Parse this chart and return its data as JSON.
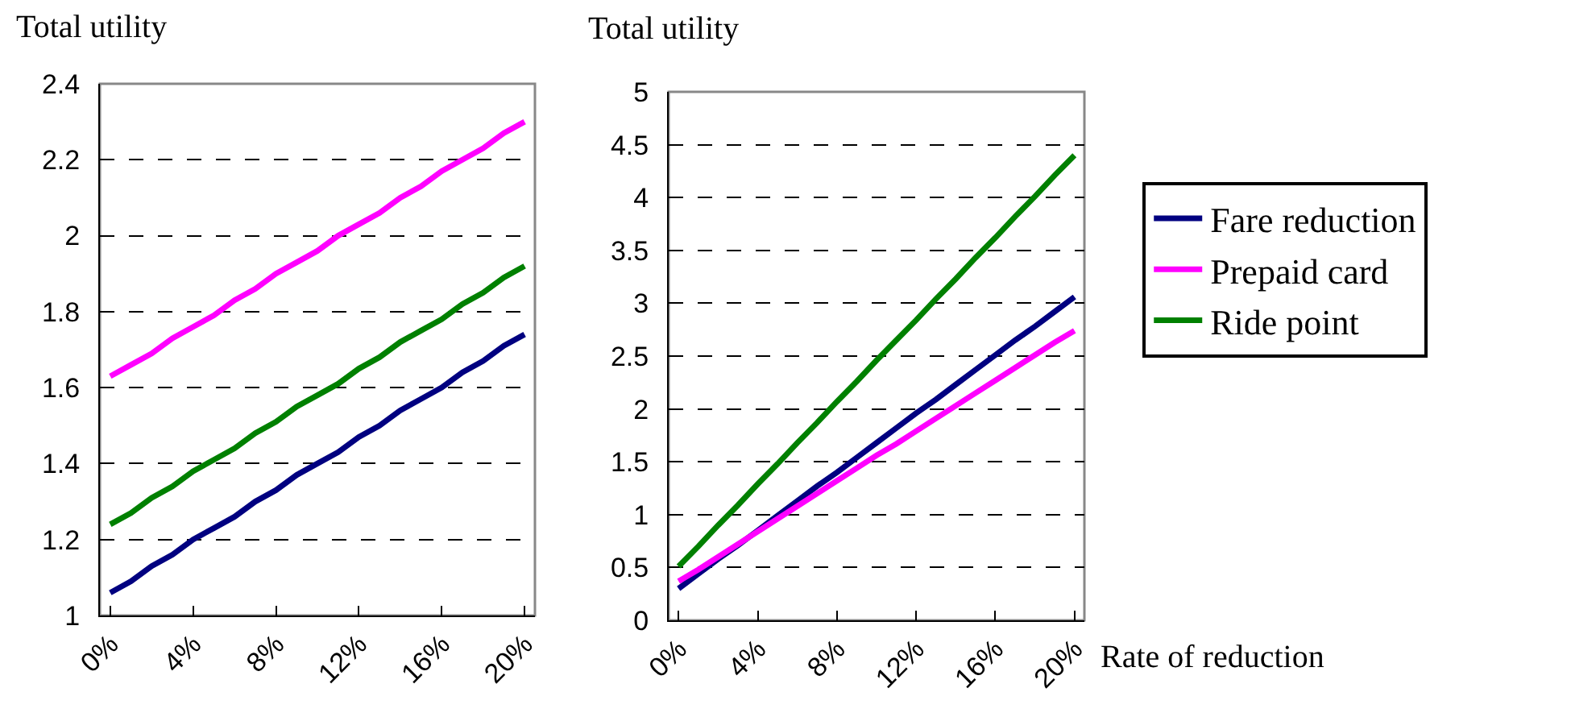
{
  "chart_data": [
    {
      "type": "line",
      "ylabel": "Total utility",
      "x": [
        0,
        1,
        2,
        3,
        4,
        5,
        6,
        7,
        8,
        9,
        10,
        11,
        12,
        13,
        14,
        15,
        16,
        17,
        18,
        19,
        20
      ],
      "xlim": [
        -0.5,
        20.5
      ],
      "xticks": [
        {
          "value": 0,
          "label": "0%"
        },
        {
          "value": 4,
          "label": "4%"
        },
        {
          "value": 8,
          "label": "8%"
        },
        {
          "value": 12,
          "label": "12%"
        },
        {
          "value": 16,
          "label": "16%"
        },
        {
          "value": 20,
          "label": "20%"
        }
      ],
      "ylim": [
        1,
        2.4
      ],
      "yticks": [
        1,
        1.2,
        1.4,
        1.6,
        1.8,
        2,
        2.2,
        2.4
      ],
      "grid": "y",
      "marker": "none",
      "line_style": "solid",
      "legend": false,
      "series": [
        {
          "color": "#000080",
          "values": [
            1.06,
            1.09,
            1.13,
            1.16,
            1.2,
            1.23,
            1.26,
            1.3,
            1.33,
            1.37,
            1.4,
            1.43,
            1.47,
            1.5,
            1.54,
            1.57,
            1.6,
            1.64,
            1.67,
            1.71,
            1.74
          ]
        },
        {
          "color": "#ff00ff",
          "values": [
            1.63,
            1.66,
            1.69,
            1.73,
            1.76,
            1.79,
            1.83,
            1.86,
            1.9,
            1.93,
            1.96,
            2.0,
            2.03,
            2.06,
            2.1,
            2.13,
            2.17,
            2.2,
            2.23,
            2.27,
            2.3
          ]
        },
        {
          "color": "#008000",
          "values": [
            1.24,
            1.27,
            1.31,
            1.34,
            1.38,
            1.41,
            1.44,
            1.48,
            1.51,
            1.55,
            1.58,
            1.61,
            1.65,
            1.68,
            1.72,
            1.75,
            1.78,
            1.82,
            1.85,
            1.89,
            1.92
          ]
        }
      ]
    },
    {
      "type": "line",
      "ylabel": "Total utility",
      "xlabel": "Rate of reduction",
      "x": [
        0,
        1,
        2,
        3,
        4,
        5,
        6,
        7,
        8,
        9,
        10,
        11,
        12,
        13,
        14,
        15,
        16,
        17,
        18,
        19,
        20
      ],
      "xlim": [
        -0.5,
        20.5
      ],
      "xticks": [
        {
          "value": 0,
          "label": "0%"
        },
        {
          "value": 4,
          "label": "4%"
        },
        {
          "value": 8,
          "label": "8%"
        },
        {
          "value": 12,
          "label": "12%"
        },
        {
          "value": 16,
          "label": "16%"
        },
        {
          "value": 20,
          "label": "20%"
        }
      ],
      "ylim": [
        0,
        5
      ],
      "yticks": [
        0,
        0.5,
        1,
        1.5,
        2,
        2.5,
        3,
        3.5,
        4,
        4.5,
        5
      ],
      "grid": "y",
      "marker": "none",
      "line_style": "solid",
      "legend": "right",
      "series": [
        {
          "name": "Fare reduction",
          "color": "#000080",
          "values": [
            0.3,
            0.44,
            0.58,
            0.71,
            0.85,
            0.99,
            1.13,
            1.27,
            1.4,
            1.54,
            1.68,
            1.82,
            1.96,
            2.09,
            2.23,
            2.37,
            2.51,
            2.65,
            2.78,
            2.92,
            3.06
          ]
        },
        {
          "name": "Prepaid card",
          "color": "#ff00ff",
          "values": [
            0.37,
            0.48,
            0.6,
            0.72,
            0.84,
            0.96,
            1.08,
            1.2,
            1.32,
            1.44,
            1.56,
            1.67,
            1.79,
            1.91,
            2.03,
            2.15,
            2.27,
            2.39,
            2.51,
            2.63,
            2.74
          ]
        },
        {
          "name": "Ride point",
          "color": "#008000",
          "values": [
            0.51,
            0.7,
            0.9,
            1.09,
            1.29,
            1.48,
            1.68,
            1.87,
            2.07,
            2.26,
            2.46,
            2.65,
            2.84,
            3.04,
            3.23,
            3.43,
            3.62,
            3.82,
            4.01,
            4.21,
            4.4
          ]
        }
      ]
    }
  ]
}
